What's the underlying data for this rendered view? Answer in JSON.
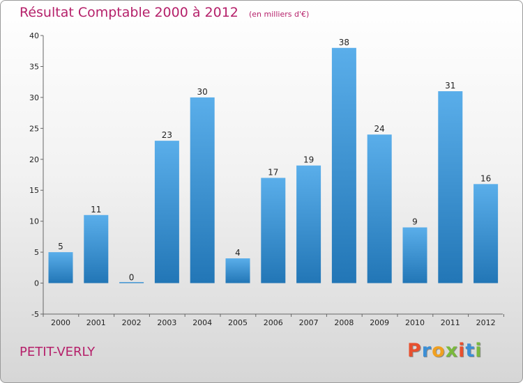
{
  "header": {
    "title": "Résultat Comptable 2000 à 2012",
    "unit_note": "(en milliers d'€)"
  },
  "footer": {
    "place_name": "PETIT-VERLY",
    "logo_letters": [
      "P",
      "r",
      "o",
      "x",
      "i",
      "t",
      "i"
    ]
  },
  "colors": {
    "title": "#b5206a",
    "bar_top": "#5aaeea",
    "bar_bottom": "#2276b6",
    "logo": [
      "#e8502f",
      "#3b8fd6",
      "#f0a020",
      "#7ab93d",
      "#e8502f",
      "#3b8fd6",
      "#7ab93d"
    ]
  },
  "chart_data": {
    "type": "bar",
    "title": "Résultat Comptable 2000 à 2012",
    "subtitle": "(en milliers d'€)",
    "xlabel": "",
    "ylabel": "",
    "categories": [
      "2000",
      "2001",
      "2002",
      "2003",
      "2004",
      "2005",
      "2006",
      "2007",
      "2008",
      "2009",
      "2010",
      "2011",
      "2012"
    ],
    "values": [
      5,
      11,
      0,
      23,
      30,
      4,
      17,
      19,
      38,
      24,
      9,
      31,
      16
    ],
    "ylim": [
      -5,
      40
    ],
    "yticks": [
      -5,
      0,
      5,
      10,
      15,
      20,
      25,
      30,
      35,
      40
    ],
    "grid": false,
    "legend": "none"
  }
}
